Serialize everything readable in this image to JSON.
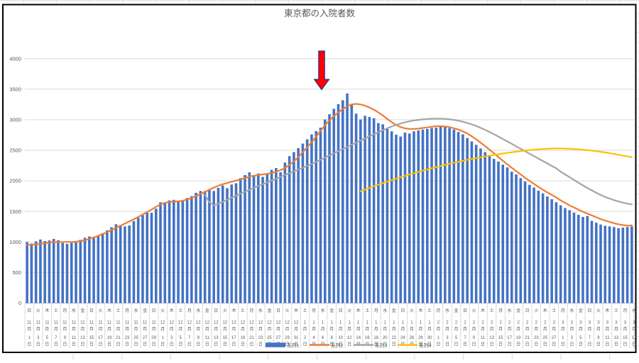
{
  "title": "東京都の入院者数",
  "legend": {
    "items": [
      {
        "label": "系列1",
        "swatch": "bar",
        "color": "#4472C4"
      },
      {
        "label": "系列2",
        "swatch": "line",
        "color": "#ED7D31"
      },
      {
        "label": "系列3",
        "swatch": "line",
        "color": "#A5A5A5"
      },
      {
        "label": "系列4",
        "swatch": "line",
        "color": "#FFC000"
      }
    ]
  },
  "annotation": {
    "shape": "down-arrow",
    "fill_color": "#FF0000",
    "outline_color": "#2E3192",
    "bar_index": 66
  },
  "chart_data": {
    "type": "bar",
    "title": "東京都の入院者数",
    "xlabel": "",
    "ylabel": "",
    "ylim": [
      0,
      4000
    ],
    "grid": true,
    "legend_position": "bottom-center",
    "y_ticks": [
      "0",
      "500",
      "1000",
      "1500",
      "2000",
      "2500",
      "3000",
      "3500",
      "4000"
    ],
    "x_label_note": "dates every 2 days, Nov 1 2020 - Mar 17 2021, stacked vertically as weekday/month/day",
    "x_labels": [
      [
        "日",
        "11",
        "月",
        "1",
        "日"
      ],
      [
        "火",
        "11",
        "月",
        "3",
        "日"
      ],
      [
        "木",
        "11",
        "月",
        "5",
        "日"
      ],
      [
        "土",
        "11",
        "月",
        "7",
        "日"
      ],
      [
        "月",
        "11",
        "月",
        "9",
        "日"
      ],
      [
        "水",
        "11",
        "月",
        "11",
        "日"
      ],
      [
        "金",
        "11",
        "月",
        "13",
        "日"
      ],
      [
        "日",
        "11",
        "月",
        "15",
        "日"
      ],
      [
        "火",
        "11",
        "月",
        "17",
        "日"
      ],
      [
        "木",
        "11",
        "月",
        "19",
        "日"
      ],
      [
        "土",
        "11",
        "月",
        "21",
        "日"
      ],
      [
        "月",
        "11",
        "月",
        "23",
        "日"
      ],
      [
        "水",
        "11",
        "月",
        "25",
        "日"
      ],
      [
        "金",
        "11",
        "月",
        "27",
        "日"
      ],
      [
        "日",
        "11",
        "月",
        "29",
        "日"
      ],
      [
        "火",
        "12",
        "月",
        "1",
        "日"
      ],
      [
        "木",
        "12",
        "月",
        "3",
        "日"
      ],
      [
        "土",
        "12",
        "月",
        "5",
        "日"
      ],
      [
        "月",
        "12",
        "月",
        "7",
        "日"
      ],
      [
        "水",
        "12",
        "月",
        "9",
        "日"
      ],
      [
        "金",
        "12",
        "月",
        "11",
        "日"
      ],
      [
        "日",
        "12",
        "月",
        "13",
        "日"
      ],
      [
        "火",
        "12",
        "月",
        "15",
        "日"
      ],
      [
        "木",
        "12",
        "月",
        "17",
        "日"
      ],
      [
        "土",
        "12",
        "月",
        "19",
        "日"
      ],
      [
        "月",
        "12",
        "月",
        "21",
        "日"
      ],
      [
        "水",
        "12",
        "月",
        "23",
        "日"
      ],
      [
        "金",
        "12",
        "月",
        "25",
        "日"
      ],
      [
        "日",
        "12",
        "月",
        "27",
        "日"
      ],
      [
        "火",
        "12",
        "月",
        "29",
        "日"
      ],
      [
        "木",
        "12",
        "月",
        "31",
        "日"
      ],
      [
        "土",
        "1",
        "月",
        "2",
        "日"
      ],
      [
        "月",
        "1",
        "月",
        "4",
        "日"
      ],
      [
        "水",
        "1",
        "月",
        "6",
        "日"
      ],
      [
        "金",
        "1",
        "月",
        "8",
        "日"
      ],
      [
        "日",
        "1",
        "月",
        "10",
        "日"
      ],
      [
        "火",
        "1",
        "月",
        "12",
        "日"
      ],
      [
        "木",
        "1",
        "月",
        "14",
        "日"
      ],
      [
        "土",
        "1",
        "月",
        "16",
        "日"
      ],
      [
        "月",
        "1",
        "月",
        "18",
        "日"
      ],
      [
        "水",
        "1",
        "月",
        "20",
        "日"
      ],
      [
        "金",
        "1",
        "月",
        "22",
        "日"
      ],
      [
        "日",
        "1",
        "月",
        "24",
        "日"
      ],
      [
        "火",
        "1",
        "月",
        "26",
        "日"
      ],
      [
        "木",
        "1",
        "月",
        "28",
        "日"
      ],
      [
        "土",
        "1",
        "月",
        "30",
        "日"
      ],
      [
        "月",
        "2",
        "月",
        "1",
        "日"
      ],
      [
        "水",
        "2",
        "月",
        "3",
        "日"
      ],
      [
        "金",
        "2",
        "月",
        "5",
        "日"
      ],
      [
        "日",
        "2",
        "月",
        "7",
        "日"
      ],
      [
        "火",
        "2",
        "月",
        "9",
        "日"
      ],
      [
        "木",
        "2",
        "月",
        "11",
        "日"
      ],
      [
        "土",
        "2",
        "月",
        "13",
        "日"
      ],
      [
        "月",
        "2",
        "月",
        "15",
        "日"
      ],
      [
        "水",
        "2",
        "月",
        "17",
        "日"
      ],
      [
        "金",
        "2",
        "月",
        "19",
        "日"
      ],
      [
        "日",
        "2",
        "月",
        "21",
        "日"
      ],
      [
        "火",
        "2",
        "月",
        "23",
        "日"
      ],
      [
        "木",
        "2",
        "月",
        "25",
        "日"
      ],
      [
        "土",
        "2",
        "月",
        "27",
        "日"
      ],
      [
        "月",
        "3",
        "月",
        "1",
        "日"
      ],
      [
        "水",
        "3",
        "月",
        "3",
        "日"
      ],
      [
        "金",
        "3",
        "月",
        "5",
        "日"
      ],
      [
        "日",
        "3",
        "月",
        "7",
        "日"
      ],
      [
        "火",
        "3",
        "月",
        "9",
        "日"
      ],
      [
        "木",
        "3",
        "月",
        "11",
        "日"
      ],
      [
        "土",
        "3",
        "月",
        "13",
        "日"
      ],
      [
        "月",
        "3",
        "月",
        "15",
        "日"
      ],
      [
        "水",
        "3",
        "月",
        "17",
        "日"
      ]
    ],
    "series": [
      {
        "name": "系列1",
        "type": "bar",
        "color": "#4472C4",
        "start_index": 0,
        "values": [
          1000,
          975,
          1010,
          1040,
          1015,
          1025,
          1050,
          1030,
          985,
          970,
          985,
          1005,
          1035,
          1070,
          1090,
          1065,
          1110,
          1145,
          1190,
          1240,
          1290,
          1275,
          1255,
          1270,
          1340,
          1395,
          1440,
          1478,
          1477,
          1545,
          1650,
          1640,
          1680,
          1690,
          1660,
          1665,
          1720,
          1750,
          1805,
          1835,
          1835,
          1865,
          1835,
          1885,
          1925,
          1880,
          1940,
          1960,
          2045,
          2095,
          2140,
          2095,
          2120,
          2065,
          2120,
          2180,
          2210,
          2140,
          2300,
          2405,
          2470,
          2535,
          2610,
          2680,
          2760,
          2815,
          2870,
          3005,
          3090,
          3180,
          3255,
          3320,
          3430,
          3250,
          3100,
          3005,
          3065,
          3045,
          3025,
          2945,
          2925,
          2850,
          2810,
          2755,
          2725,
          2790,
          2775,
          2810,
          2825,
          2840,
          2850,
          2865,
          2870,
          2895,
          2890,
          2865,
          2840,
          2800,
          2760,
          2700,
          2645,
          2590,
          2530,
          2470,
          2410,
          2360,
          2315,
          2265,
          2220,
          2150,
          2105,
          2045,
          1990,
          1935,
          1890,
          1840,
          1795,
          1745,
          1700,
          1650,
          1600,
          1555,
          1520,
          1480,
          1445,
          1410,
          1425,
          1345,
          1315,
          1285,
          1265,
          1255,
          1245,
          1225,
          1235,
          1245,
          1255
        ]
      },
      {
        "name": "系列2",
        "type": "line",
        "color": "#ED7D31",
        "start_index": 0,
        "values": [
          950,
          955,
          960,
          970,
          980,
          990,
          995,
          1000,
          1000,
          1000,
          1000,
          1005,
          1015,
          1030,
          1050,
          1075,
          1100,
          1130,
          1160,
          1195,
          1230,
          1265,
          1300,
          1335,
          1370,
          1410,
          1450,
          1490,
          1530,
          1575,
          1615,
          1640,
          1655,
          1660,
          1665,
          1675,
          1695,
          1720,
          1750,
          1785,
          1820,
          1855,
          1890,
          1920,
          1945,
          1965,
          1985,
          2005,
          2025,
          2045,
          2070,
          2085,
          2095,
          2105,
          2115,
          2130,
          2150,
          2175,
          2210,
          2260,
          2320,
          2390,
          2470,
          2550,
          2630,
          2720,
          2820,
          2910,
          2990,
          3060,
          3120,
          3175,
          3220,
          3250,
          3260,
          3250,
          3230,
          3200,
          3165,
          3120,
          3070,
          3015,
          2960,
          2915,
          2880,
          2860,
          2850,
          2850,
          2855,
          2865,
          2875,
          2885,
          2895,
          2895,
          2890,
          2880,
          2860,
          2840,
          2810,
          2775,
          2730,
          2680,
          2625,
          2570,
          2510,
          2450,
          2390,
          2330,
          2270,
          2215,
          2160,
          2105,
          2050,
          2000,
          1950,
          1900,
          1855,
          1810,
          1770,
          1730,
          1680,
          1640,
          1600,
          1565,
          1530,
          1495,
          1465,
          1435,
          1405,
          1375,
          1350,
          1328,
          1308,
          1290,
          1277,
          1267,
          1272
        ]
      },
      {
        "name": "系列3",
        "type": "line",
        "color": "#A5A5A5",
        "start_index": 40,
        "values": [
          1770,
          1650,
          1600,
          1625,
          1655,
          1690,
          1725,
          1760,
          1790,
          1820,
          1855,
          1885,
          1915,
          1945,
          1975,
          2005,
          2035,
          2065,
          2095,
          2125,
          2155,
          2185,
          2215,
          2245,
          2275,
          2310,
          2345,
          2380,
          2415,
          2450,
          2485,
          2520,
          2555,
          2590,
          2625,
          2660,
          2695,
          2730,
          2762,
          2795,
          2828,
          2860,
          2890,
          2915,
          2938,
          2958,
          2975,
          2988,
          2998,
          3006,
          3012,
          3016,
          3018,
          3018,
          3015,
          3008,
          2998,
          2985,
          2968,
          2948,
          2925,
          2898,
          2868,
          2835,
          2800,
          2763,
          2725,
          2685,
          2645,
          2605,
          2565,
          2525,
          2485,
          2445,
          2405,
          2365,
          2325,
          2285,
          2245,
          2205,
          2150,
          2105,
          2060,
          2015,
          1970,
          1925,
          1885,
          1845,
          1805,
          1770,
          1738,
          1710,
          1685,
          1663,
          1644,
          1628,
          1615
        ]
      },
      {
        "name": "系列4",
        "type": "line",
        "color": "#FFC000",
        "start_index": 75,
        "values": [
          1830,
          1858,
          1885,
          1912,
          1938,
          1963,
          1988,
          2013,
          2037,
          2060,
          2083,
          2105,
          2127,
          2148,
          2168,
          2188,
          2207,
          2226,
          2244,
          2262,
          2279,
          2296,
          2312,
          2328,
          2343,
          2358,
          2372,
          2386,
          2399,
          2412,
          2424,
          2436,
          2447,
          2458,
          2468,
          2478,
          2487,
          2495,
          2503,
          2510,
          2516,
          2521,
          2525,
          2528,
          2530,
          2530,
          2528,
          2525,
          2521,
          2516,
          2510,
          2503,
          2495,
          2486,
          2476,
          2465,
          2453,
          2440,
          2427,
          2414,
          2401,
          2390
        ]
      }
    ]
  }
}
